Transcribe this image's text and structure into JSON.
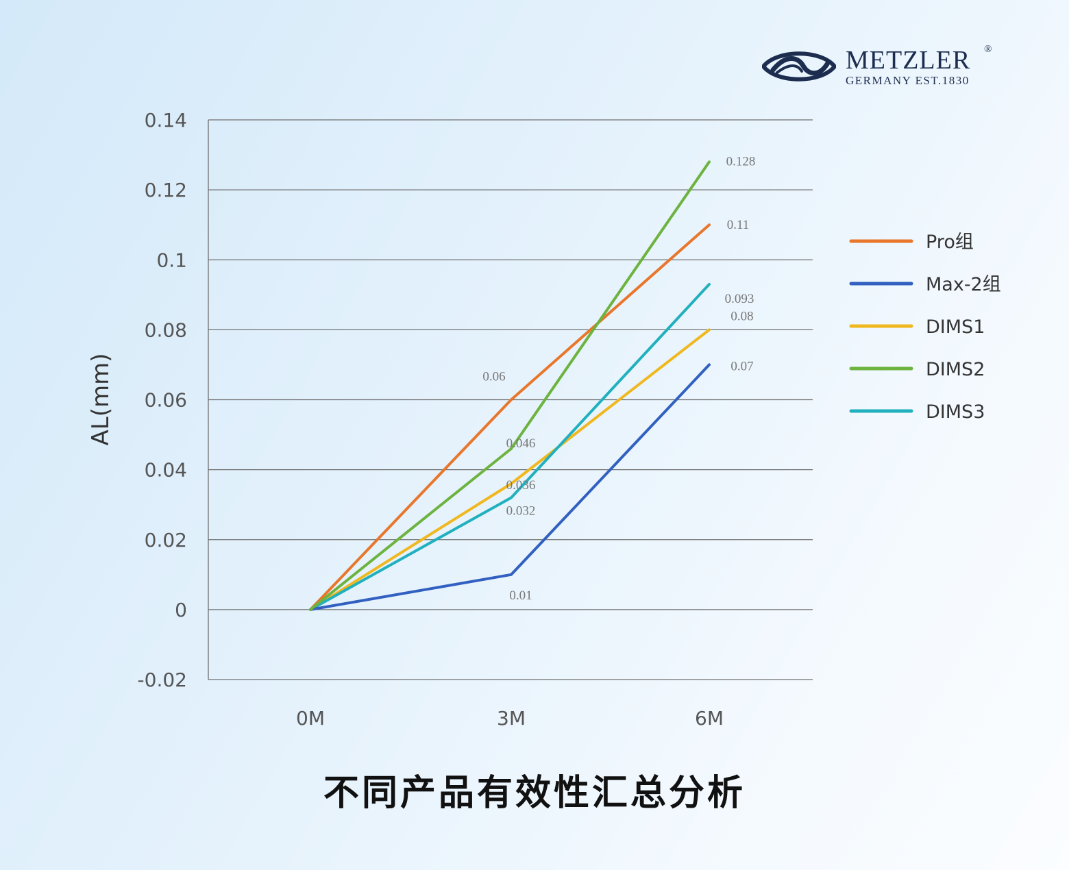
{
  "brand": {
    "name": "METZLER",
    "registered": "®",
    "subtitle": "GERMANY EST.1830",
    "accent": "#1c2d4f"
  },
  "caption": "不同产品有效性汇总分析",
  "chart_data": {
    "type": "line",
    "title": "",
    "xlabel": "",
    "ylabel": "AL(mm)",
    "x": [
      "0M",
      "3M",
      "6M"
    ],
    "ylim": [
      -0.02,
      0.14
    ],
    "yticks": [
      -0.02,
      0,
      0.02,
      0.04,
      0.06,
      0.08,
      0.1,
      0.12,
      0.14
    ],
    "ytick_labels": [
      "-0.02",
      "0",
      "0.02",
      "0.04",
      "0.06",
      "0.08",
      "0.1",
      "0.12",
      "0.14"
    ],
    "grid": true,
    "legend_position": "right",
    "series": [
      {
        "name": "Pro组",
        "color": "#e8762b",
        "values": [
          0,
          0.06,
          0.11
        ],
        "labels": [
          "",
          "0.06",
          "0.11"
        ]
      },
      {
        "name": "Max-2组",
        "color": "#3160c0",
        "values": [
          0,
          0.01,
          0.07
        ],
        "labels": [
          "",
          "0.01",
          "0.07"
        ]
      },
      {
        "name": "DIMS1",
        "color": "#f0b81f",
        "values": [
          0,
          0.036,
          0.08
        ],
        "labels": [
          "",
          "0.036",
          "0.08"
        ]
      },
      {
        "name": "DIMS2",
        "color": "#6db33f",
        "values": [
          0,
          0.046,
          0.128
        ],
        "labels": [
          "",
          "0.046",
          "0.128"
        ]
      },
      {
        "name": "DIMS3",
        "color": "#21b0bd",
        "values": [
          0,
          0.032,
          0.093
        ],
        "labels": [
          "",
          "0.032",
          "0.093"
        ]
      }
    ]
  }
}
